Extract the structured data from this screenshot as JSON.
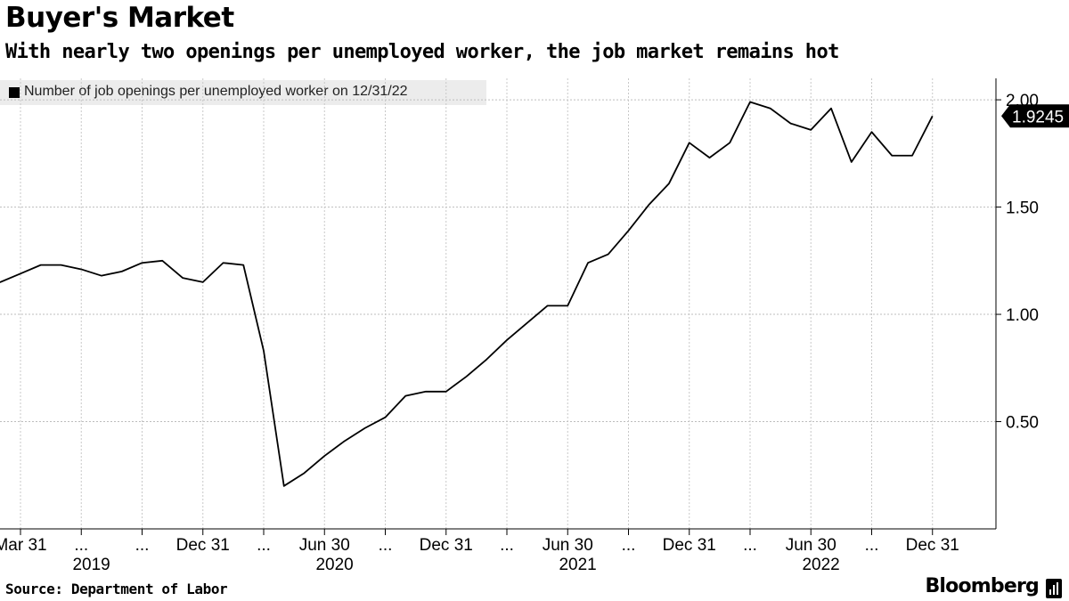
{
  "header": {
    "title": "Buyer's Market",
    "subtitle": "With nearly two openings per unemployed worker, the job market remains hot"
  },
  "legend": {
    "label": "Number of job openings per unemployed worker on 12/31/22",
    "color": "#000000"
  },
  "footer": {
    "source": "Source: Department of Labor",
    "brand": "Bloomberg"
  },
  "chart_data": {
    "type": "line",
    "x": [
      "2019-01",
      "2019-02",
      "2019-03",
      "2019-04",
      "2019-05",
      "2019-06",
      "2019-07",
      "2019-08",
      "2019-09",
      "2019-10",
      "2019-11",
      "2019-12",
      "2020-01",
      "2020-02",
      "2020-03",
      "2020-04",
      "2020-05",
      "2020-06",
      "2020-07",
      "2020-08",
      "2020-09",
      "2020-10",
      "2020-11",
      "2020-12",
      "2021-01",
      "2021-02",
      "2021-03",
      "2021-04",
      "2021-05",
      "2021-06",
      "2021-07",
      "2021-08",
      "2021-09",
      "2021-10",
      "2021-11",
      "2021-12",
      "2022-01",
      "2022-02",
      "2022-03",
      "2022-04",
      "2022-05",
      "2022-06",
      "2022-07",
      "2022-08",
      "2022-09",
      "2022-10",
      "2022-11",
      "2022-12"
    ],
    "series": [
      {
        "name": "Number of job openings per unemployed worker on 12/31/22",
        "color": "#000000",
        "values": [
          1.16,
          1.15,
          1.19,
          1.23,
          1.23,
          1.21,
          1.18,
          1.2,
          1.24,
          1.25,
          1.17,
          1.15,
          1.24,
          1.23,
          0.83,
          0.2,
          0.26,
          0.34,
          0.41,
          0.47,
          0.52,
          0.62,
          0.64,
          0.64,
          0.71,
          0.79,
          0.88,
          0.96,
          1.04,
          1.04,
          1.24,
          1.28,
          1.39,
          1.51,
          1.61,
          1.8,
          1.73,
          1.8,
          1.99,
          1.96,
          1.89,
          1.86,
          1.96,
          1.71,
          1.85,
          1.74,
          1.74,
          1.9245
        ]
      }
    ],
    "x_tick_labels": [
      "Mar 31",
      "...",
      "...",
      "Dec 31",
      "...",
      "Jun 30",
      "...",
      "Dec 31",
      "...",
      "Jun 30",
      "...",
      "Dec 31",
      "...",
      "Jun 30",
      "...",
      "Dec 31"
    ],
    "x_year_labels": [
      "2019",
      "2020",
      "2021",
      "2022"
    ],
    "y_ticks": [
      0.5,
      1.0,
      1.5,
      2.0
    ],
    "y_tick_labels": [
      "0.50",
      "1.00",
      "1.50",
      "2.00"
    ],
    "ylim": [
      0.0,
      2.1
    ],
    "last_value_label": "1.9245",
    "grid": true,
    "y_axis_side": "right",
    "legend_position": "top-left"
  }
}
